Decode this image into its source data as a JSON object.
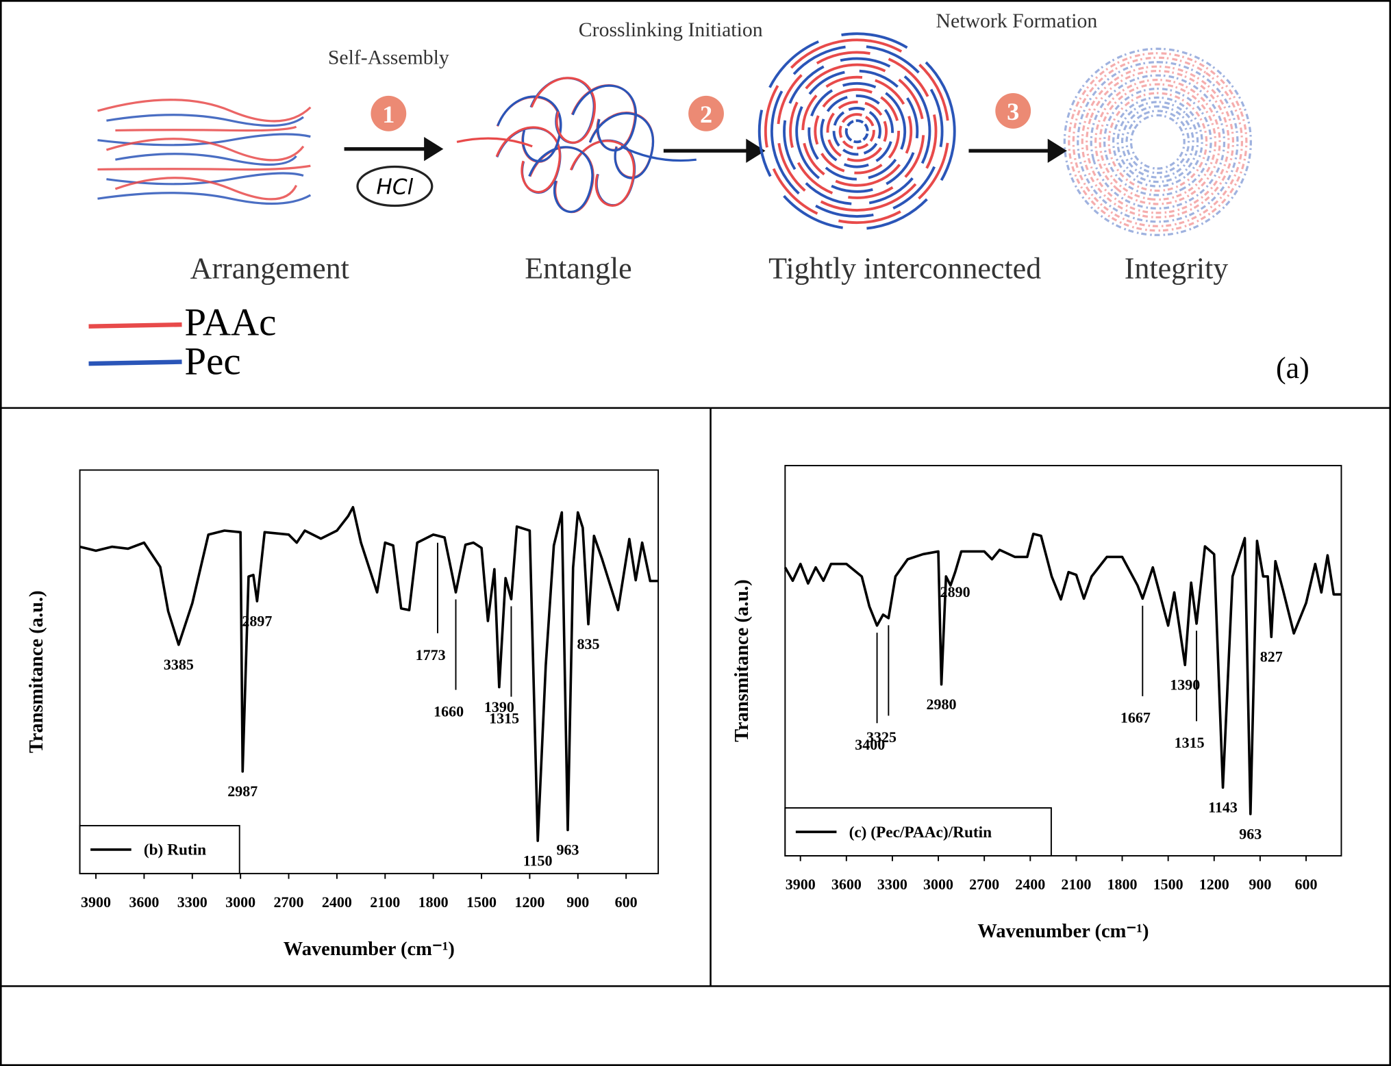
{
  "schematic": {
    "steps": [
      {
        "number": "1",
        "label": "Self-Assembly",
        "reagent": "HCl"
      },
      {
        "number": "2",
        "label": "Crosslinking Initiation"
      },
      {
        "number": "3",
        "label": "Network Formation"
      }
    ],
    "stages": [
      "Arrangement",
      "Entangle",
      "Tightly interconnected",
      "Integrity"
    ],
    "legend": [
      {
        "name": "PAAc",
        "color": "#e84a4a"
      },
      {
        "name": "Pec",
        "color": "#2a55b8"
      }
    ],
    "panel_label": "(a)"
  },
  "chart_data": [
    {
      "type": "line",
      "x_label": "Wavenumber (cm⁻¹)",
      "y_label": "Transmitance (a.u.)",
      "xlim": [
        4000,
        400
      ],
      "ylim": [
        0,
        100
      ],
      "xticks": [
        3900,
        3600,
        3300,
        3000,
        2700,
        2400,
        2100,
        1800,
        1500,
        1200,
        900,
        600
      ],
      "legend": "lower left",
      "x": [
        4000,
        3900,
        3800,
        3700,
        3600,
        3500,
        3450,
        3385,
        3300,
        3200,
        3100,
        3000,
        2987,
        2950,
        2920,
        2897,
        2850,
        2700,
        2650,
        2600,
        2500,
        2400,
        2330,
        2300,
        2250,
        2150,
        2100,
        2050,
        2000,
        1950,
        1900,
        1800,
        1730,
        1660,
        1600,
        1550,
        1500,
        1460,
        1420,
        1390,
        1350,
        1315,
        1280,
        1200,
        1150,
        1100,
        1050,
        1000,
        963,
        930,
        900,
        870,
        835,
        800,
        750,
        650,
        580,
        540,
        500,
        450,
        400
      ],
      "series": [
        {
          "name": "(b) Rutin",
          "color": "#000000",
          "values": [
            81,
            80,
            81,
            80.5,
            82,
            76,
            65,
            56.7,
            67,
            84,
            85,
            84.6,
            25.3,
            73.6,
            74,
            67.5,
            84.6,
            84,
            82,
            85,
            83,
            85,
            88.6,
            90.8,
            82,
            69.7,
            82,
            81.3,
            65.7,
            65.3,
            82,
            84,
            83.3,
            69.7,
            81.5,
            82,
            80.7,
            62.6,
            75.4,
            46.2,
            73.2,
            68,
            86,
            85,
            8.1,
            51.6,
            81.3,
            89.5,
            10.8,
            75.8,
            89.5,
            85.7,
            61.8,
            83.7,
            78,
            65.3,
            82.9,
            72.7,
            82,
            72.5,
            72.5
          ]
        }
      ],
      "annotations": [
        {
          "x": 3385
        },
        {
          "x": 2987
        },
        {
          "x": 2897
        },
        {
          "x": 1773,
          "leader": true
        },
        {
          "x": 1660,
          "leader": true
        },
        {
          "x": 1390
        },
        {
          "x": 1315,
          "leader": true
        },
        {
          "x": 1150
        },
        {
          "x": 963
        },
        {
          "x": 835
        }
      ]
    },
    {
      "type": "line",
      "x_label": "Wavenumber (cm⁻¹)",
      "y_label": "Transmitance (a.u.)",
      "xlim": [
        4000,
        370
      ],
      "ylim": [
        0,
        100
      ],
      "xticks": [
        3900,
        3600,
        3300,
        3000,
        2700,
        2400,
        2100,
        1800,
        1500,
        1200,
        900,
        600
      ],
      "legend": "lower left",
      "x": [
        4000,
        3950,
        3900,
        3850,
        3800,
        3750,
        3700,
        3600,
        3500,
        3450,
        3400,
        3360,
        3325,
        3280,
        3200,
        3100,
        3000,
        2980,
        2950,
        2920,
        2890,
        2850,
        2700,
        2650,
        2600,
        2500,
        2420,
        2380,
        2330,
        2260,
        2200,
        2150,
        2100,
        2050,
        2000,
        1900,
        1800,
        1700,
        1667,
        1600,
        1500,
        1460,
        1390,
        1350,
        1315,
        1260,
        1200,
        1143,
        1080,
        1000,
        963,
        920,
        880,
        850,
        827,
        800,
        750,
        680,
        600,
        540,
        500,
        460,
        420,
        370
      ],
      "series": [
        {
          "name": "(c) (Pec/PAAc)/Rutin",
          "color": "#000000",
          "values": [
            73.9,
            70.5,
            74.8,
            69.8,
            73.9,
            70.5,
            74.8,
            74.8,
            71.6,
            63.9,
            59,
            61.8,
            60.9,
            71.6,
            76,
            77.3,
            78,
            43.9,
            71.6,
            69.3,
            72.7,
            78,
            78,
            76,
            78.4,
            76.6,
            76.6,
            82.5,
            82,
            71.6,
            65.7,
            72.7,
            72,
            65.9,
            71.6,
            76.6,
            76.6,
            69.3,
            65.9,
            73.9,
            59,
            67.5,
            48.9,
            70,
            59.5,
            79.3,
            77.3,
            17.5,
            71.6,
            81.4,
            10.7,
            80.7,
            71.6,
            71.6,
            56.1,
            75.5,
            68,
            57,
            64.8,
            74.8,
            67.5,
            77,
            67,
            67
          ]
        }
      ],
      "annotations": [
        {
          "x": 3400,
          "leader": true
        },
        {
          "x": 3325,
          "leader": true
        },
        {
          "x": 2980
        },
        {
          "x": 2890
        },
        {
          "x": 1667,
          "leader": true
        },
        {
          "x": 1390
        },
        {
          "x": 1315,
          "leader": true
        },
        {
          "x": 1143
        },
        {
          "x": 963
        },
        {
          "x": 827
        }
      ]
    }
  ]
}
